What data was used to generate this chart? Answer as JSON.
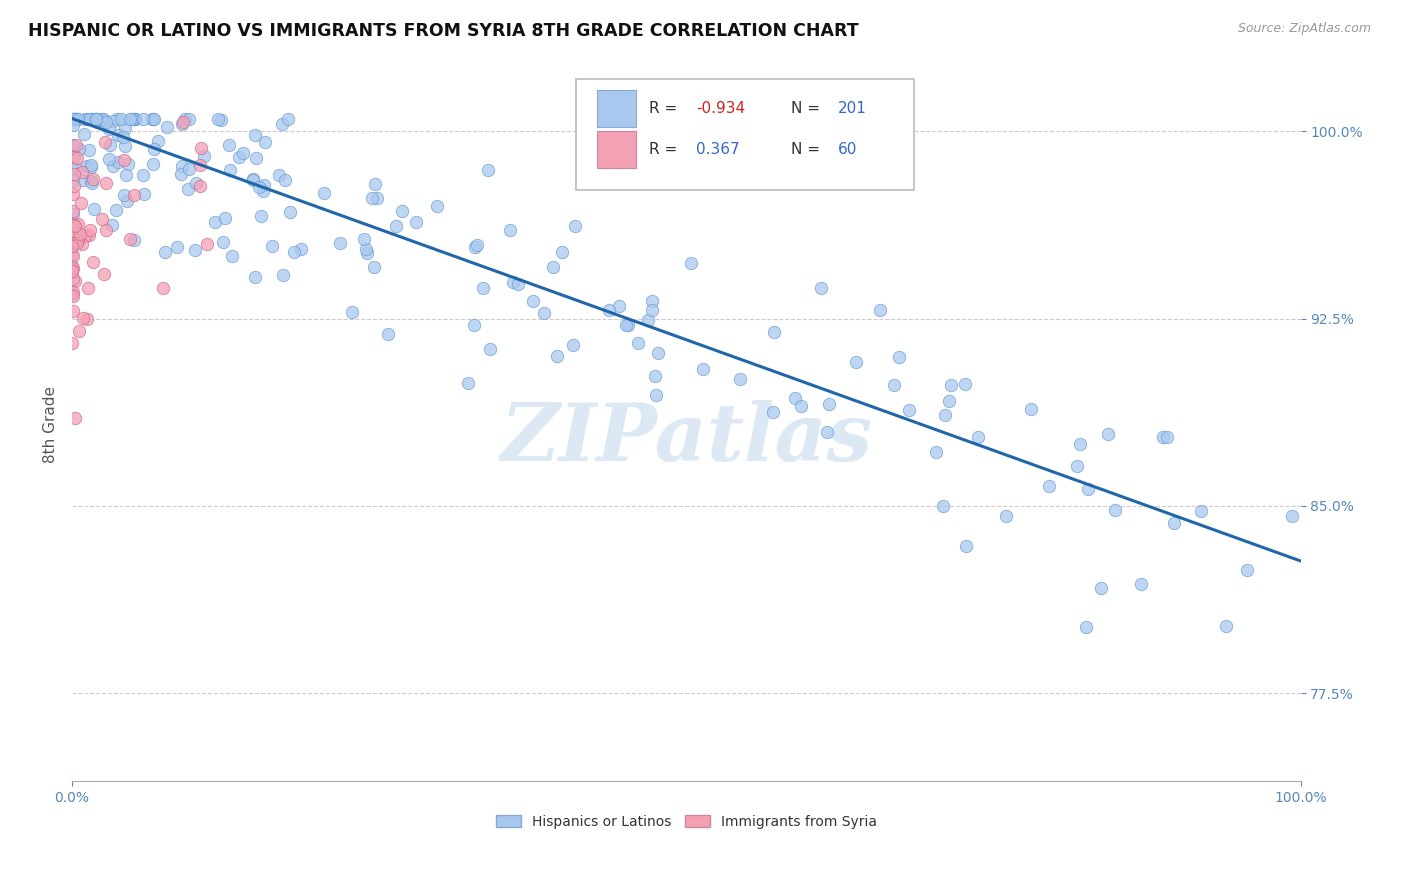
{
  "title": "HISPANIC OR LATINO VS IMMIGRANTS FROM SYRIA 8TH GRADE CORRELATION CHART",
  "source_text": "Source: ZipAtlas.com",
  "ylabel": "8th Grade",
  "xlim": [
    0,
    1
  ],
  "ylim": [
    0.74,
    1.025
  ],
  "yticks": [
    0.775,
    0.85,
    0.925,
    1.0
  ],
  "blue_color": "#a8c8f0",
  "blue_edge": "#6699cc",
  "pink_color": "#f4a0b5",
  "pink_edge": "#cc6688",
  "trend_color": "#2266aa",
  "watermark": "ZIPatlas",
  "background_color": "#ffffff",
  "grid_color": "#cccccc",
  "blue_R": -0.934,
  "blue_N": 201,
  "pink_R": 0.367,
  "pink_N": 60,
  "trend_x0": 0.0,
  "trend_y0": 1.005,
  "trend_x1": 1.0,
  "trend_y1": 0.828
}
